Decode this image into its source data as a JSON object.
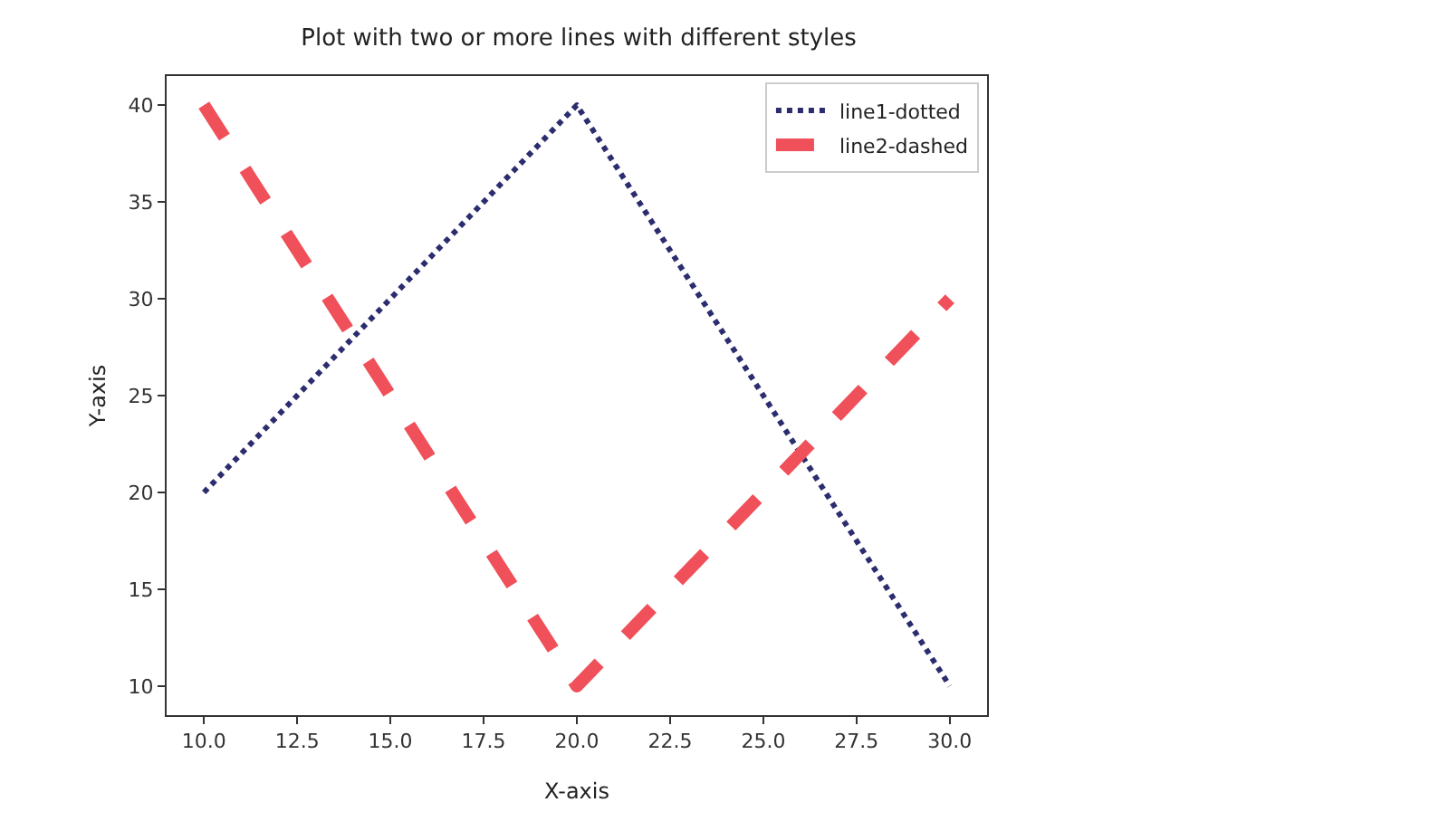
{
  "chart_data": {
    "type": "line",
    "title": "Plot with two or more lines with different styles",
    "xlabel": "X-axis",
    "ylabel": "Y-axis",
    "x": [
      10,
      20,
      30
    ],
    "series": [
      {
        "name": "line1-dotted",
        "color": "#2b2d6e",
        "values": [
          20,
          40,
          10
        ],
        "line_style": "dotted"
      },
      {
        "name": "line2-dashed",
        "color": "#f0505a",
        "values": [
          40,
          10,
          30
        ],
        "line_style": "dashed"
      }
    ],
    "xlim": [
      9,
      31
    ],
    "xticks": [
      {
        "value": 10,
        "label": "10.0"
      },
      {
        "value": 12.5,
        "label": "12.5"
      },
      {
        "value": 15,
        "label": "15.0"
      },
      {
        "value": 17.5,
        "label": "17.5"
      },
      {
        "value": 20,
        "label": "20.0"
      },
      {
        "value": 22.5,
        "label": "22.5"
      },
      {
        "value": 25,
        "label": "25.0"
      },
      {
        "value": 27.5,
        "label": "27.5"
      },
      {
        "value": 30,
        "label": "30.0"
      }
    ],
    "ylim": [
      8.5,
      41.5
    ],
    "yticks": [
      10,
      15,
      20,
      25,
      30,
      35,
      40
    ],
    "grid": false,
    "legend": "top right",
    "marker": "none"
  }
}
